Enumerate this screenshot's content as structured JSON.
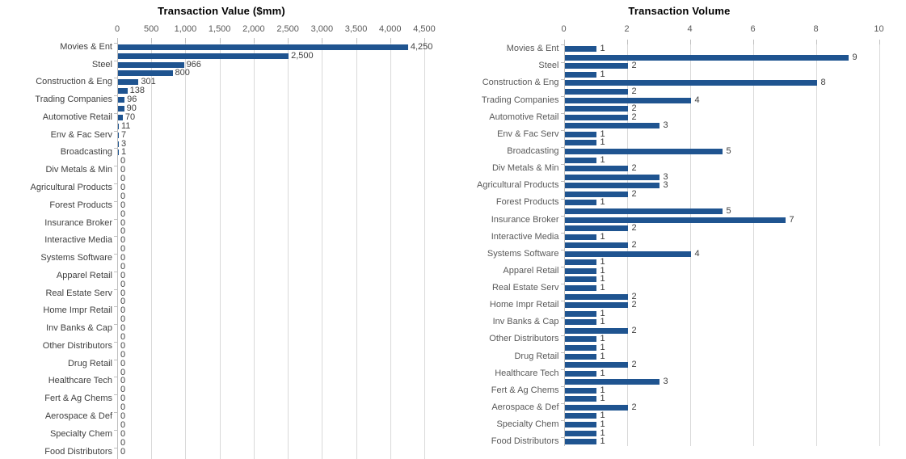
{
  "style": {
    "bar_color": "#1F5490",
    "grid_color": "#D9D9D9",
    "axis_color": "#BFBFBF",
    "tick_text_color": "#595959",
    "value_text_color": "#404040",
    "title_color": "#000000",
    "left_category_text_color": "#3F3F3F",
    "right_category_text_color": "#595959"
  },
  "chart_data": [
    {
      "type": "bar",
      "orientation": "horizontal",
      "title": "Transaction Value ($mm)",
      "xlim": [
        0,
        4500
      ],
      "grid": true,
      "ticks": [
        {
          "value": 0,
          "label": "0"
        },
        {
          "value": 500,
          "label": "500"
        },
        {
          "value": 1000,
          "label": "1,000"
        },
        {
          "value": 1500,
          "label": "1,500"
        },
        {
          "value": 2000,
          "label": "2,000"
        },
        {
          "value": 2500,
          "label": "2,500"
        },
        {
          "value": 3000,
          "label": "3,000"
        },
        {
          "value": 3500,
          "label": "3,500"
        },
        {
          "value": 4000,
          "label": "4,000"
        },
        {
          "value": 4500,
          "label": "4,500"
        }
      ],
      "categories": [
        "Movies & Ent",
        "Steel",
        "Construction & Eng",
        "Trading Companies",
        "Automotive Retail",
        "Env & Fac Serv",
        "Broadcasting",
        "Div Metals & Min",
        "Agricultural Products",
        "Forest Products",
        "Insurance Broker",
        "Interactive Media",
        "Systems Software",
        "Apparel Retail",
        "Real Estate Serv",
        "Home Impr Retail",
        "Inv Banks & Cap",
        "Other Distributors",
        "Drug Retail",
        "Healthcare Tech",
        "Fert & Ag Chems",
        "Aerospace & Def",
        "Specialty Chem",
        "Food Distributors"
      ],
      "rows": [
        {
          "label": "Movies & Ent",
          "value": 4250,
          "text": "4,250"
        },
        {
          "label": "",
          "value": 2500,
          "text": "2,500"
        },
        {
          "label": "Steel",
          "value": 966,
          "text": "966"
        },
        {
          "label": "",
          "value": 800,
          "text": "800"
        },
        {
          "label": "Construction & Eng",
          "value": 301,
          "text": "301"
        },
        {
          "label": "",
          "value": 138,
          "text": "138"
        },
        {
          "label": "Trading Companies",
          "value": 96,
          "text": "96"
        },
        {
          "label": "",
          "value": 90,
          "text": "90"
        },
        {
          "label": "Automotive Retail",
          "value": 70,
          "text": "70"
        },
        {
          "label": "",
          "value": 11,
          "text": "11"
        },
        {
          "label": "Env & Fac Serv",
          "value": 7,
          "text": "7"
        },
        {
          "label": "",
          "value": 3,
          "text": "3"
        },
        {
          "label": "Broadcasting",
          "value": 1,
          "text": "1"
        },
        {
          "label": "",
          "value": 0,
          "text": "0"
        },
        {
          "label": "Div Metals & Min",
          "value": 0,
          "text": "0"
        },
        {
          "label": "",
          "value": 0,
          "text": "0"
        },
        {
          "label": "Agricultural Products",
          "value": 0,
          "text": "0"
        },
        {
          "label": "",
          "value": 0,
          "text": "0"
        },
        {
          "label": "Forest Products",
          "value": 0,
          "text": "0"
        },
        {
          "label": "",
          "value": 0,
          "text": "0"
        },
        {
          "label": "Insurance Broker",
          "value": 0,
          "text": "0"
        },
        {
          "label": "",
          "value": 0,
          "text": "0"
        },
        {
          "label": "Interactive Media",
          "value": 0,
          "text": "0"
        },
        {
          "label": "",
          "value": 0,
          "text": "0"
        },
        {
          "label": "Systems Software",
          "value": 0,
          "text": "0"
        },
        {
          "label": "",
          "value": 0,
          "text": "0"
        },
        {
          "label": "Apparel Retail",
          "value": 0,
          "text": "0"
        },
        {
          "label": "",
          "value": 0,
          "text": "0"
        },
        {
          "label": "Real Estate Serv",
          "value": 0,
          "text": "0"
        },
        {
          "label": "",
          "value": 0,
          "text": "0"
        },
        {
          "label": "Home Impr Retail",
          "value": 0,
          "text": "0"
        },
        {
          "label": "",
          "value": 0,
          "text": "0"
        },
        {
          "label": "Inv Banks & Cap",
          "value": 0,
          "text": "0"
        },
        {
          "label": "",
          "value": 0,
          "text": "0"
        },
        {
          "label": "Other Distributors",
          "value": 0,
          "text": "0"
        },
        {
          "label": "",
          "value": 0,
          "text": "0"
        },
        {
          "label": "Drug Retail",
          "value": 0,
          "text": "0"
        },
        {
          "label": "",
          "value": 0,
          "text": "0"
        },
        {
          "label": "Healthcare Tech",
          "value": 0,
          "text": "0"
        },
        {
          "label": "",
          "value": 0,
          "text": "0"
        },
        {
          "label": "Fert & Ag Chems",
          "value": 0,
          "text": "0"
        },
        {
          "label": "",
          "value": 0,
          "text": "0"
        },
        {
          "label": "Aerospace & Def",
          "value": 0,
          "text": "0"
        },
        {
          "label": "",
          "value": 0,
          "text": "0"
        },
        {
          "label": "Specialty Chem",
          "value": 0,
          "text": "0"
        },
        {
          "label": "",
          "value": 0,
          "text": "0"
        },
        {
          "label": "Food Distributors",
          "value": 0,
          "text": "0"
        }
      ]
    },
    {
      "type": "bar",
      "orientation": "horizontal",
      "title": "Transaction Volume",
      "xlim": [
        0,
        10
      ],
      "grid": true,
      "ticks": [
        {
          "value": 0,
          "label": "0"
        },
        {
          "value": 2,
          "label": "2"
        },
        {
          "value": 4,
          "label": "4"
        },
        {
          "value": 6,
          "label": "6"
        },
        {
          "value": 8,
          "label": "8"
        },
        {
          "value": 10,
          "label": "10"
        }
      ],
      "categories": [
        "Movies & Ent",
        "Steel",
        "Construction & Eng",
        "Trading Companies",
        "Automotive Retail",
        "Env & Fac Serv",
        "Broadcasting",
        "Div Metals & Min",
        "Agricultural Products",
        "Forest Products",
        "Insurance Broker",
        "Interactive Media",
        "Systems Software",
        "Apparel Retail",
        "Real Estate Serv",
        "Home Impr Retail",
        "Inv Banks & Cap",
        "Other Distributors",
        "Drug Retail",
        "Healthcare Tech",
        "Fert & Ag Chems",
        "Aerospace & Def",
        "Specialty Chem",
        "Food Distributors"
      ],
      "rows": [
        {
          "label": "Movies & Ent",
          "value": 1,
          "text": "1"
        },
        {
          "label": "",
          "value": 9,
          "text": "9"
        },
        {
          "label": "Steel",
          "value": 2,
          "text": "2"
        },
        {
          "label": "",
          "value": 1,
          "text": "1"
        },
        {
          "label": "Construction & Eng",
          "value": 8,
          "text": "8"
        },
        {
          "label": "",
          "value": 2,
          "text": "2"
        },
        {
          "label": "Trading Companies",
          "value": 4,
          "text": "4"
        },
        {
          "label": "",
          "value": 2,
          "text": "2"
        },
        {
          "label": "Automotive Retail",
          "value": 2,
          "text": "2"
        },
        {
          "label": "",
          "value": 3,
          "text": "3"
        },
        {
          "label": "Env & Fac Serv",
          "value": 1,
          "text": "1"
        },
        {
          "label": "",
          "value": 1,
          "text": "1"
        },
        {
          "label": "Broadcasting",
          "value": 5,
          "text": "5"
        },
        {
          "label": "",
          "value": 1,
          "text": "1"
        },
        {
          "label": "Div Metals & Min",
          "value": 2,
          "text": "2"
        },
        {
          "label": "",
          "value": 3,
          "text": "3"
        },
        {
          "label": "Agricultural Products",
          "value": 3,
          "text": "3"
        },
        {
          "label": "",
          "value": 2,
          "text": "2"
        },
        {
          "label": "Forest Products",
          "value": 1,
          "text": "1"
        },
        {
          "label": "",
          "value": 5,
          "text": "5"
        },
        {
          "label": "Insurance Broker",
          "value": 7,
          "text": "7"
        },
        {
          "label": "",
          "value": 2,
          "text": "2"
        },
        {
          "label": "Interactive Media",
          "value": 1,
          "text": "1"
        },
        {
          "label": "",
          "value": 2,
          "text": "2"
        },
        {
          "label": "Systems Software",
          "value": 4,
          "text": "4"
        },
        {
          "label": "",
          "value": 1,
          "text": "1"
        },
        {
          "label": "Apparel Retail",
          "value": 1,
          "text": "1"
        },
        {
          "label": "",
          "value": 1,
          "text": "1"
        },
        {
          "label": "Real Estate Serv",
          "value": 1,
          "text": "1"
        },
        {
          "label": "",
          "value": 2,
          "text": "2"
        },
        {
          "label": "Home Impr Retail",
          "value": 2,
          "text": "2"
        },
        {
          "label": "",
          "value": 1,
          "text": "1"
        },
        {
          "label": "Inv Banks & Cap",
          "value": 1,
          "text": "1"
        },
        {
          "label": "",
          "value": 2,
          "text": "2"
        },
        {
          "label": "Other Distributors",
          "value": 1,
          "text": "1"
        },
        {
          "label": "",
          "value": 1,
          "text": "1"
        },
        {
          "label": "Drug Retail",
          "value": 1,
          "text": "1"
        },
        {
          "label": "",
          "value": 2,
          "text": "2"
        },
        {
          "label": "Healthcare Tech",
          "value": 1,
          "text": "1"
        },
        {
          "label": "",
          "value": 3,
          "text": "3"
        },
        {
          "label": "Fert & Ag Chems",
          "value": 1,
          "text": "1"
        },
        {
          "label": "",
          "value": 1,
          "text": "1"
        },
        {
          "label": "Aerospace & Def",
          "value": 2,
          "text": "2"
        },
        {
          "label": "",
          "value": 1,
          "text": "1"
        },
        {
          "label": "Specialty Chem",
          "value": 1,
          "text": "1"
        },
        {
          "label": "",
          "value": 1,
          "text": "1"
        },
        {
          "label": "Food Distributors",
          "value": 1,
          "text": "1"
        }
      ]
    }
  ]
}
